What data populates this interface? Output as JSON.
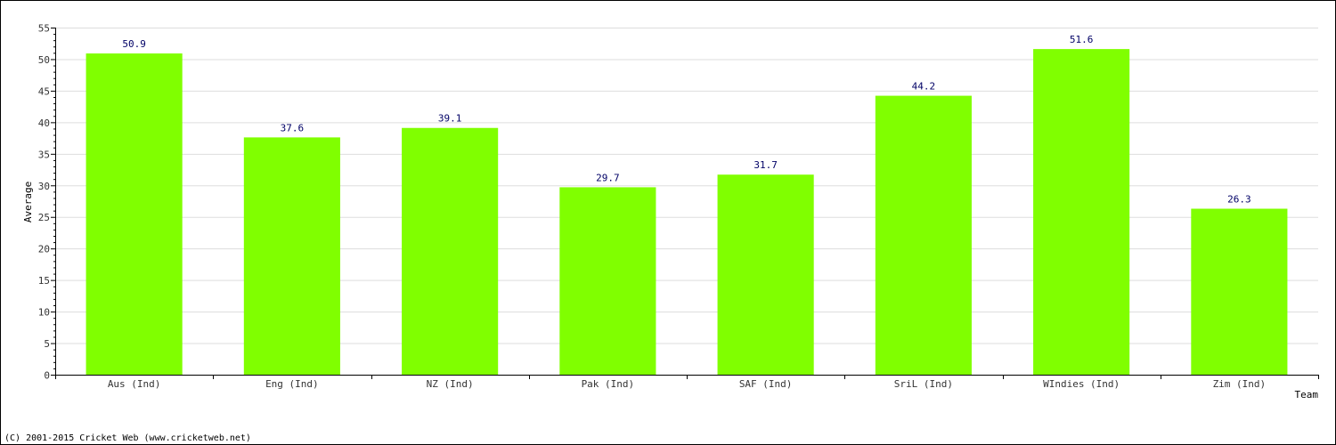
{
  "chart_data": {
    "type": "bar",
    "title": "",
    "xlabel": "Team",
    "ylabel": "Average",
    "ylim": [
      0,
      55
    ],
    "ytick_step": 5,
    "yticks": [
      "0",
      "5",
      "10",
      "15",
      "20",
      "25",
      "30",
      "35",
      "40",
      "45",
      "50",
      "55"
    ],
    "grid": true,
    "categories": [
      "Aus (Ind)",
      "Eng (Ind)",
      "NZ (Ind)",
      "Pak (Ind)",
      "SAF (Ind)",
      "SriL (Ind)",
      "WIndies (Ind)",
      "Zim (Ind)"
    ],
    "values": [
      50.9,
      37.6,
      39.1,
      29.7,
      31.7,
      44.2,
      51.6,
      26.3
    ],
    "data_labels": [
      "50.9",
      "37.6",
      "39.1",
      "29.7",
      "31.7",
      "44.2",
      "51.6",
      "26.3"
    ],
    "bar_color": "#80ff00",
    "gridline_color": "#dddddd",
    "label_color": "#000066"
  },
  "footer": {
    "copyright": "(C) 2001-2015 Cricket Web (www.cricketweb.net)"
  }
}
